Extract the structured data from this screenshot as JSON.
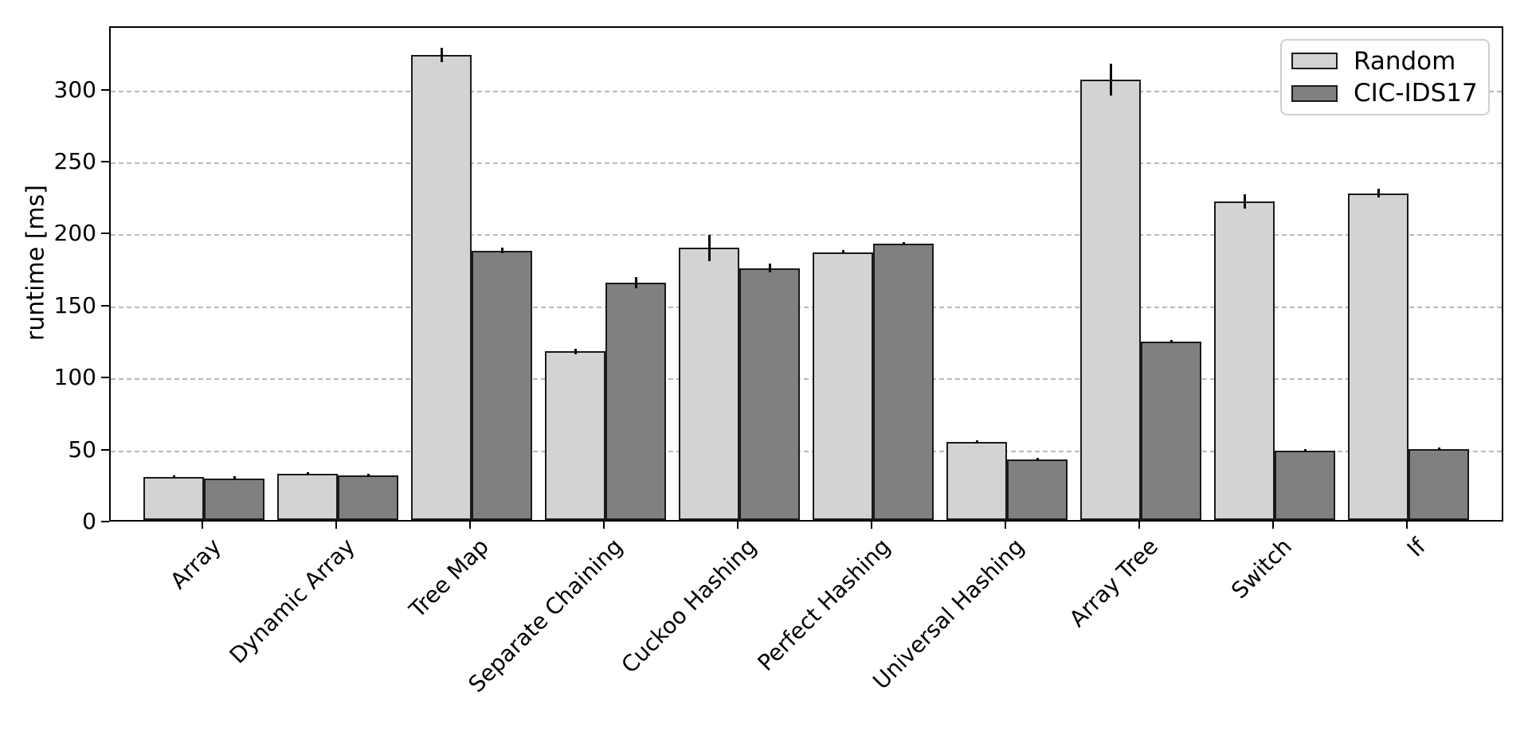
{
  "chart_data": {
    "type": "bar",
    "title": "",
    "xlabel": "",
    "ylabel": "runtime [ms]",
    "categories": [
      "Array",
      "Dynamic Array",
      "Tree Map",
      "Separate Chaining",
      "Cuckoo Hashing",
      "Perfect Hashing",
      "Universal Hashing",
      "Array Tree",
      "Switch",
      "If"
    ],
    "series": [
      {
        "name": "Random",
        "color": "#d3d3d3",
        "values": [
          30,
          32,
          323,
          117,
          189,
          186,
          54,
          306,
          221,
          227
        ],
        "errors": [
          1,
          1,
          5,
          2,
          9,
          1,
          1,
          11,
          5,
          3
        ]
      },
      {
        "name": "CIC-IDS17",
        "color": "#808080",
        "values": [
          29,
          31,
          187,
          165,
          175,
          192,
          42,
          124,
          48,
          49
        ],
        "errors": [
          1,
          1,
          2,
          4,
          3,
          1,
          1,
          1,
          1,
          1
        ]
      }
    ],
    "ylim": [
      0,
      344
    ],
    "yticks": [
      0,
      50,
      100,
      150,
      200,
      250,
      300
    ],
    "grid": "horizontal-dashed",
    "legend_position": "upper right",
    "bar_edge_color": "#1a1a1a",
    "error_bar_color": "#0a0a0a",
    "grid_color": "#b8b8b8"
  }
}
